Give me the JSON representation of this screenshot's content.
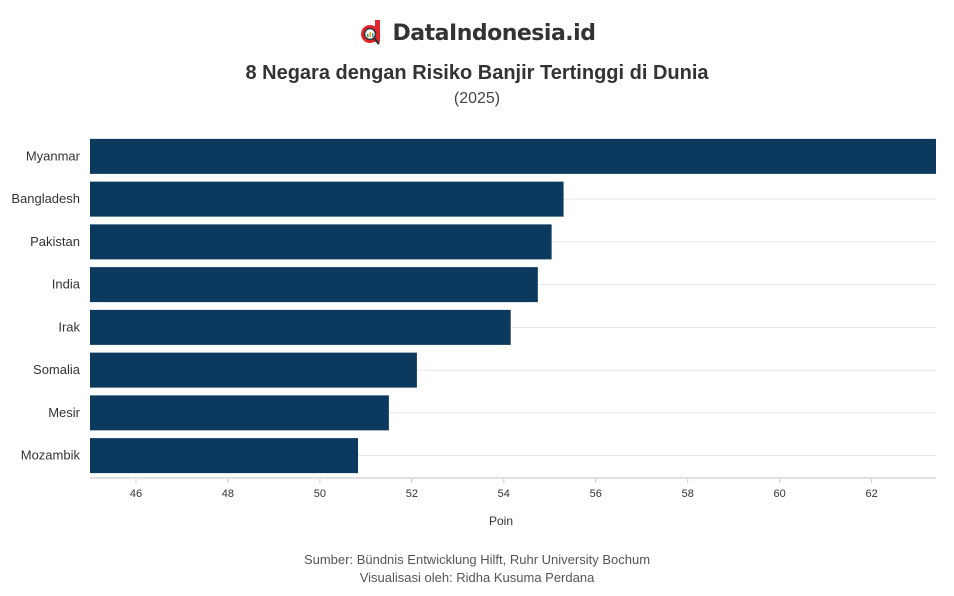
{
  "brand": {
    "name": "DataIndonesia.id",
    "accent": "#e3262b"
  },
  "chart_data": {
    "type": "bar",
    "orientation": "horizontal",
    "title": "8 Negara dengan Risiko Banjir Tertinggi di Dunia",
    "subtitle": "(2025)",
    "categories": [
      "Myanmar",
      "Bangladesh",
      "Pakistan",
      "India",
      "Irak",
      "Somalia",
      "Mesir",
      "Mozambik"
    ],
    "values": [
      63.4,
      55.3,
      55.04,
      54.74,
      54.15,
      52.11,
      51.5,
      50.83
    ],
    "xlabel": "Poin",
    "ylabel": "",
    "xlim": [
      45,
      63.4
    ],
    "xticks": [
      46,
      48,
      50,
      52,
      54,
      56,
      58,
      60,
      62
    ],
    "grid": true,
    "bar_color": "#0b3a5e"
  },
  "footer": {
    "source": "Sumber: Bündnis Entwicklung Hilft, Ruhr University Bochum",
    "visual": "Visualisasi oleh: Ridha Kusuma Perdana"
  }
}
